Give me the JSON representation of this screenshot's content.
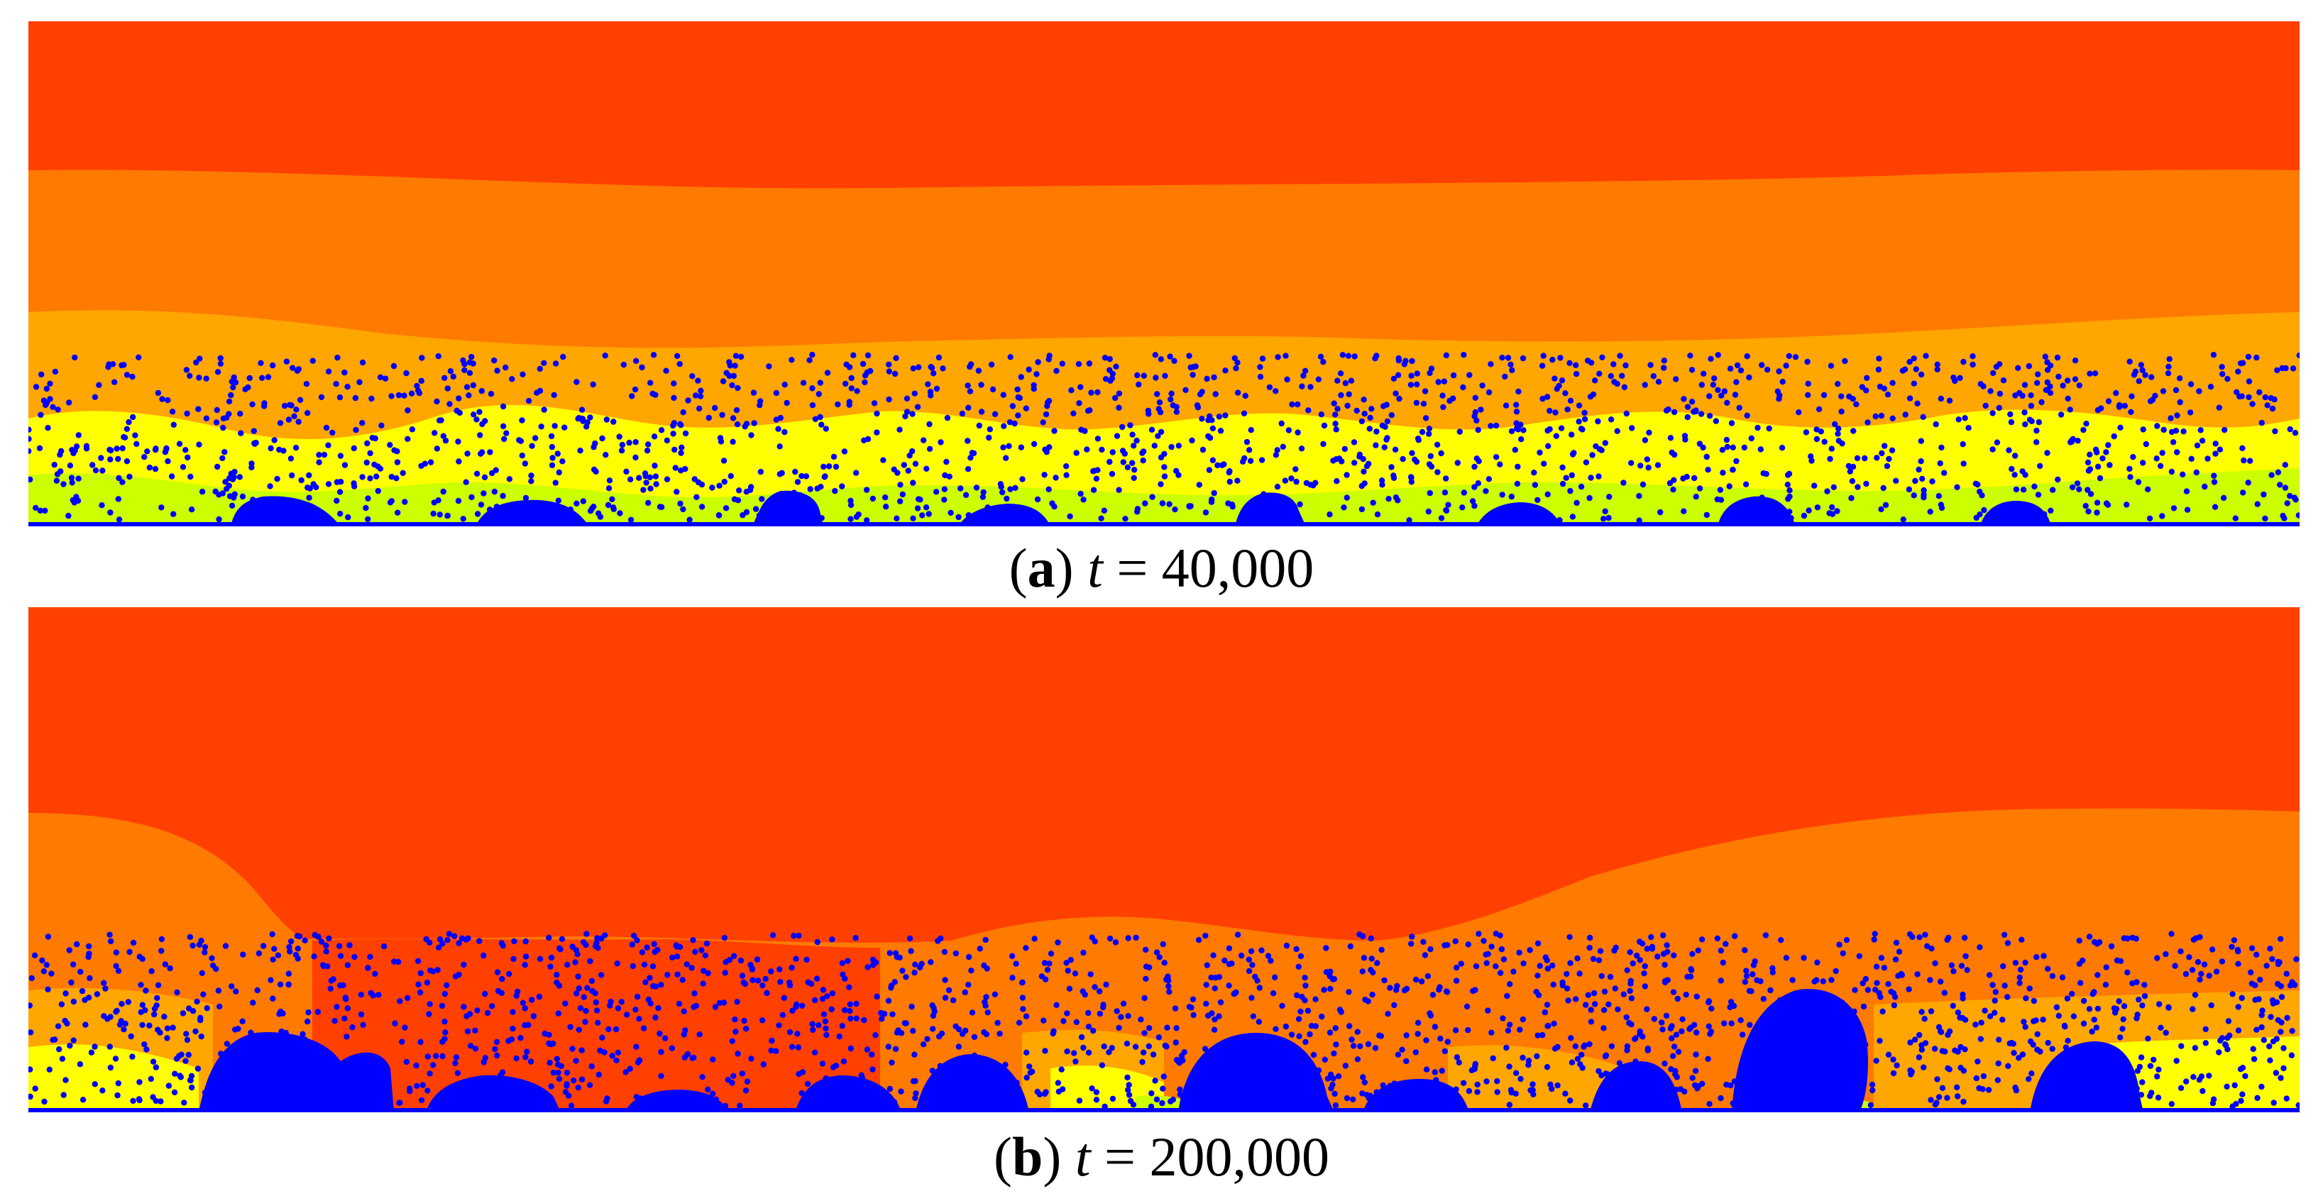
{
  "colors": {
    "red_orange": "#ff4000",
    "orange": "#ff7a00",
    "light_orange": "#ffa600",
    "yellow": "#ffff00",
    "yellow_green": "#ccff00",
    "blue": "#0000ff",
    "background": "#ffffff"
  },
  "panels": [
    {
      "id": "a",
      "caption_open": "(",
      "caption_tag": "a",
      "caption_close": ")",
      "caption_var": "t",
      "caption_rest": " = 40,000"
    },
    {
      "id": "b",
      "caption_open": "(",
      "caption_tag": "b",
      "caption_close": ")",
      "caption_var": "t",
      "caption_rest": " = 200,000"
    }
  ]
}
